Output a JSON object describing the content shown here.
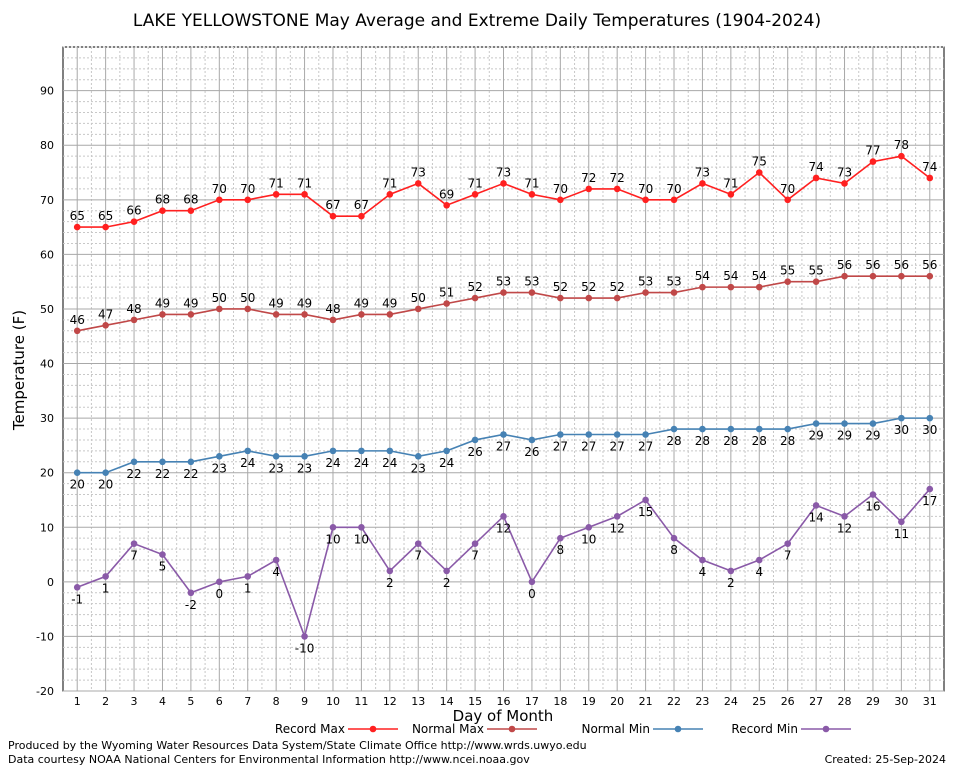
{
  "chart_data": {
    "type": "line",
    "title": "LAKE YELLOWSTONE May Average and Extreme Daily Temperatures (1904-2024)",
    "xlabel": "Day of Month",
    "ylabel": "Temperature (F)",
    "ylim": [
      -20,
      98
    ],
    "xlim": [
      0.5,
      31.5
    ],
    "yticks": [
      -20,
      -10,
      0,
      10,
      20,
      30,
      40,
      50,
      60,
      70,
      80,
      90
    ],
    "x": [
      1,
      2,
      3,
      4,
      5,
      6,
      7,
      8,
      9,
      10,
      11,
      12,
      13,
      14,
      15,
      16,
      17,
      18,
      19,
      20,
      21,
      22,
      23,
      24,
      25,
      26,
      27,
      28,
      29,
      30,
      31
    ],
    "grid": true,
    "legend_position": "bottom",
    "series": [
      {
        "name": "Record Max",
        "color": "#ff2020",
        "marker": "circle",
        "label_position": "above",
        "values": [
          65,
          65,
          66,
          68,
          68,
          70,
          70,
          71,
          71,
          67,
          67,
          71,
          73,
          69,
          71,
          73,
          71,
          70,
          72,
          72,
          70,
          70,
          73,
          71,
          75,
          70,
          74,
          73,
          77,
          78,
          74
        ]
      },
      {
        "name": "Normal Max",
        "color": "#c04848",
        "marker": "circle",
        "label_position": "above",
        "values": [
          46,
          47,
          48,
          49,
          49,
          50,
          50,
          49,
          49,
          48,
          49,
          49,
          50,
          51,
          52,
          53,
          53,
          52,
          52,
          52,
          53,
          53,
          54,
          54,
          54,
          55,
          55,
          56,
          56,
          56,
          56
        ]
      },
      {
        "name": "Normal Min",
        "color": "#4682b4",
        "marker": "circle",
        "label_position": "below",
        "values": [
          20,
          20,
          22,
          22,
          22,
          23,
          24,
          23,
          23,
          24,
          24,
          24,
          23,
          24,
          26,
          27,
          26,
          27,
          27,
          27,
          27,
          28,
          28,
          28,
          28,
          28,
          29,
          29,
          29,
          30,
          30
        ]
      },
      {
        "name": "Record Min",
        "color": "#8a5aa8",
        "marker": "circle",
        "label_position": "below",
        "values": [
          -1,
          1,
          7,
          5,
          -2,
          0,
          1,
          4,
          -10,
          10,
          10,
          2,
          7,
          2,
          7,
          12,
          0,
          8,
          10,
          12,
          15,
          8,
          4,
          2,
          4,
          7,
          14,
          12,
          16,
          11,
          17
        ]
      }
    ]
  },
  "footer": {
    "credit_line_1": "Produced by the Wyoming Water Resources Data System/State Climate Office http://www.wrds.uwyo.edu",
    "credit_line_2": "Data courtesy NOAA National Centers for Environmental Information http://www.ncei.noaa.gov",
    "created": "Created:  25-Sep-2024"
  }
}
